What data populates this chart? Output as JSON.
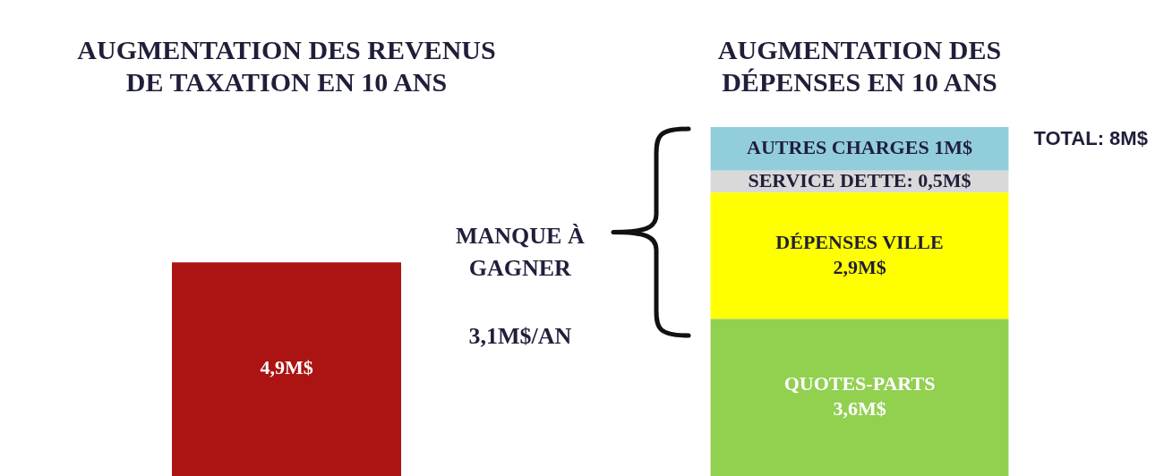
{
  "chart_data": {
    "type": "bar",
    "stacked": true,
    "legend": false,
    "grid": false,
    "categories": [
      "AUGMENTATION DES REVENUS DE TAXATION EN 10 ANS",
      "AUGMENTATION DES DÉPENSES EN 10 ANS"
    ],
    "series": [
      {
        "color": "#ac1313",
        "values": [
          4.9,
          null
        ],
        "value_labels": [
          "4,9M$",
          null
        ]
      },
      {
        "color": "#92d050",
        "values": [
          null,
          3.6
        ],
        "value_labels": [
          null,
          "QUOTES-PARTS\n3,6M$"
        ]
      },
      {
        "color": "#ffff00",
        "values": [
          null,
          2.9
        ],
        "value_labels": [
          null,
          "DÉPENSES VILLE\n2,9M$"
        ]
      },
      {
        "color": "#d9d9d9",
        "values": [
          null,
          0.5
        ],
        "value_labels": [
          null,
          "SERVICE DETTE: 0,5M$"
        ]
      },
      {
        "color": "#92cddc",
        "values": [
          null,
          1
        ],
        "value_labels": [
          null,
          "AUTRES CHARGES 1M$"
        ]
      }
    ],
    "totals": [
      null,
      "TOTAL: 8M$"
    ],
    "annotations": [
      "MANQUE À\nGAGNER",
      "3,1M$/AN"
    ]
  }
}
